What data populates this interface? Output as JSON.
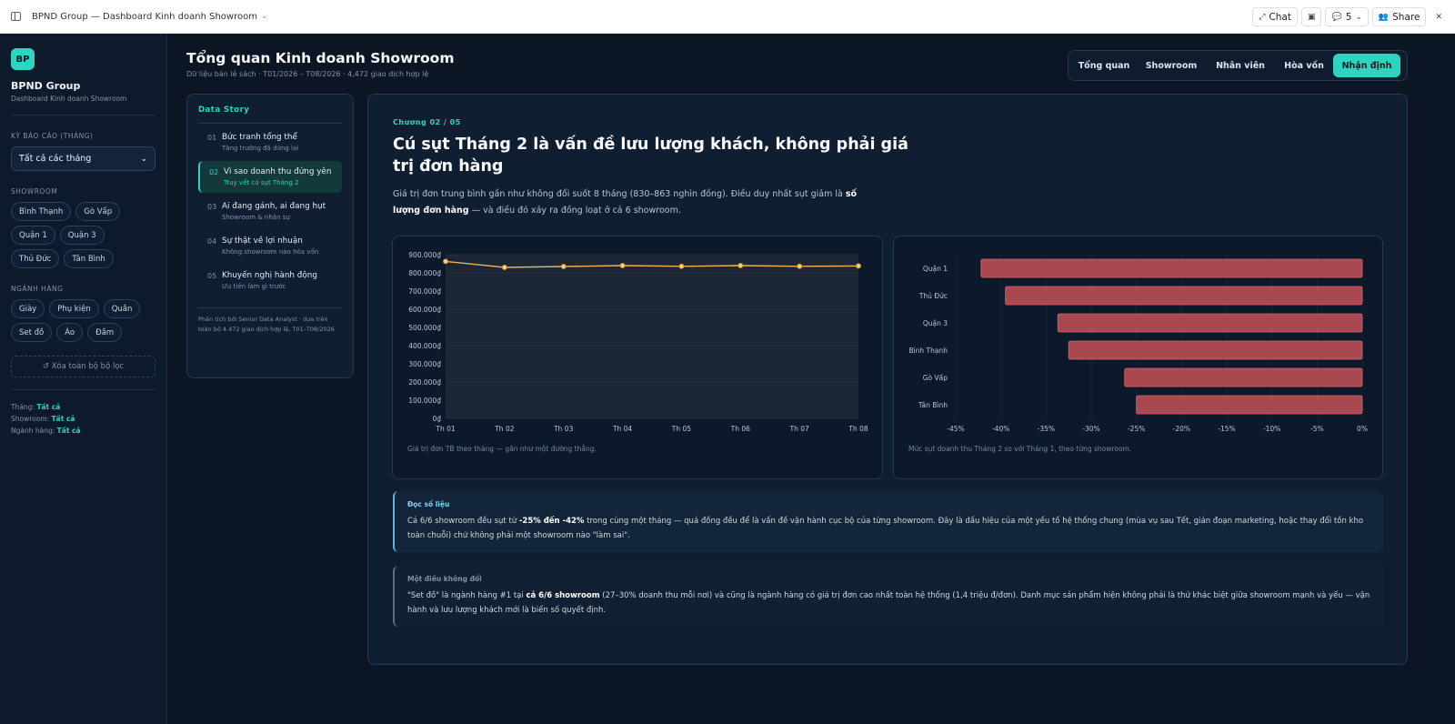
{
  "app": {
    "window_title": "BPND Group — Dashboard Kinh doanh Showroom"
  },
  "topbar": {
    "chat_label": "Chat",
    "comments_count": "5",
    "share_label": "Share"
  },
  "sidebar": {
    "logo": "BP",
    "brand": "BPND Group",
    "brand_sub": "Dashboard Kinh doanh Showroom",
    "period_label": "KỲ BÁO CÁO (THÁNG)",
    "period_value": "Tất cả các tháng",
    "showroom_label": "SHOWROOM",
    "showrooms": [
      "Bình Thạnh",
      "Gò Vấp",
      "Quận 1",
      "Quận 3",
      "Thủ Đức",
      "Tân Bình"
    ],
    "category_label": "NGÀNH HÀNG",
    "categories": [
      "Giày",
      "Phụ kiện",
      "Quần",
      "Set đồ",
      "Áo",
      "Đầm"
    ],
    "reset_label": "↺ Xóa toàn bộ bộ lọc",
    "status": [
      {
        "k": "Tháng:",
        "v": "Tất cả"
      },
      {
        "k": "Showroom:",
        "v": "Tất cả"
      },
      {
        "k": "Ngành hàng:",
        "v": "Tất cả"
      }
    ]
  },
  "header": {
    "title": "Tổng quan Kinh doanh Showroom",
    "subtitle": "Dữ liệu bán lẻ sách · T01/2026 – T08/2026 · 4,472 giao dịch hợp lệ",
    "tabs": [
      "Tổng quan",
      "Showroom",
      "Nhân viên",
      "Hòa vốn",
      "Nhận định"
    ],
    "active_tab": "Nhận định"
  },
  "story": {
    "heading": "Data Story",
    "items": [
      {
        "num": "01",
        "title": "Bức tranh tổng thể",
        "sub": "Tăng trưởng đã dừng lại"
      },
      {
        "num": "02",
        "title": "Vì sao doanh thu đứng yên",
        "sub": "Truy vết cú sụt Tháng 2"
      },
      {
        "num": "03",
        "title": "Ai đang gánh, ai đang hụt",
        "sub": "Showroom & nhân sự"
      },
      {
        "num": "04",
        "title": "Sự thật về lợi nhuận",
        "sub": "Không showroom nào hòa vốn"
      },
      {
        "num": "05",
        "title": "Khuyến nghị hành động",
        "sub": "Ưu tiên làm gì trước"
      }
    ],
    "active_index": 1,
    "footer": "Phân tích bởi Senior Data Analyst · dựa trên toàn bộ 4.472 giao dịch hợp lệ, T01–T08/2026"
  },
  "main": {
    "chapter": "Chương 02 / 05",
    "headline": "Cú sụt Tháng 2 là vấn đề lưu lượng khách, không phải giá trị đơn hàng",
    "lead_a": "Giá trị đơn trung bình gần như không đổi suốt 8 tháng (830–863 nghìn đồng). Điều duy nhất sụt giảm là ",
    "lead_b": "số lượng đơn hàng",
    "lead_c": " — và điều đó xảy ra đồng loạt ở cả 6 showroom.",
    "line_caption": "Giá trị đơn TB theo tháng — gần như một đường thẳng.",
    "bar_caption": "Mức sụt doanh thu Tháng 2 so với Tháng 1, theo từng showroom.",
    "note1": {
      "heading": "Đọc số liệu",
      "a": "Cả 6/6 showroom đều sụt từ ",
      "b": "-25% đến -42%",
      "c": " trong cùng một tháng — quá đồng đều để là vấn đề vận hành cục bộ của từng showroom. Đây là dấu hiệu của một yếu tố hệ thống chung (mùa vụ sau Tết, gián đoạn marketing, hoặc thay đổi tồn kho toàn chuỗi) chứ không phải một showroom nào \"làm sai\"."
    },
    "note2": {
      "heading": "Một điều không đổi",
      "a": "\"Set đồ\" là ngành hàng #1 tại ",
      "b": "cả 6/6 showroom",
      "c": " (27–30% doanh thu mỗi nơi) và cũng là ngành hàng có giá trị đơn cao nhất toàn hệ thống (1,4 triệu đ/đơn). Danh mục sản phẩm hiện không phải là thứ khác biệt giữa showroom mạnh và yếu — vận hành và lưu lượng khách mới là biến số quyết định."
    }
  },
  "colors": {
    "accent": "#2dd4bf",
    "line": "#e8b15e",
    "bar": "#a9484f",
    "bar_stroke": "#d46a72"
  },
  "chart_data": [
    {
      "type": "line",
      "x": [
        "Th 01",
        "Th 02",
        "Th 03",
        "Th 04",
        "Th 05",
        "Th 06",
        "Th 07",
        "Th 08"
      ],
      "values": [
        863000,
        830000,
        835000,
        840000,
        836000,
        840000,
        836000,
        838000
      ],
      "ylim": [
        0,
        900000
      ],
      "yticks": [
        "0₫",
        "100.000₫",
        "200.000₫",
        "300.000₫",
        "400.000₫",
        "500.000₫",
        "600.000₫",
        "700.000₫",
        "800.000₫",
        "900.000₫"
      ],
      "grid": true
    },
    {
      "type": "bar",
      "orientation": "horizontal",
      "categories": [
        "Quận 1",
        "Thủ Đức",
        "Quận 3",
        "Bình Thạnh",
        "Gò Vấp",
        "Tân Bình"
      ],
      "values": [
        -42.2,
        -39.5,
        -33.7,
        -32.5,
        -26.3,
        -25.0
      ],
      "xlim": [
        -45,
        0
      ],
      "xticks": [
        "-45%",
        "-40%",
        "-35%",
        "-30%",
        "-25%",
        "-20%",
        "-15%",
        "-10%",
        "-5%",
        "0%"
      ],
      "grid": true
    }
  ]
}
